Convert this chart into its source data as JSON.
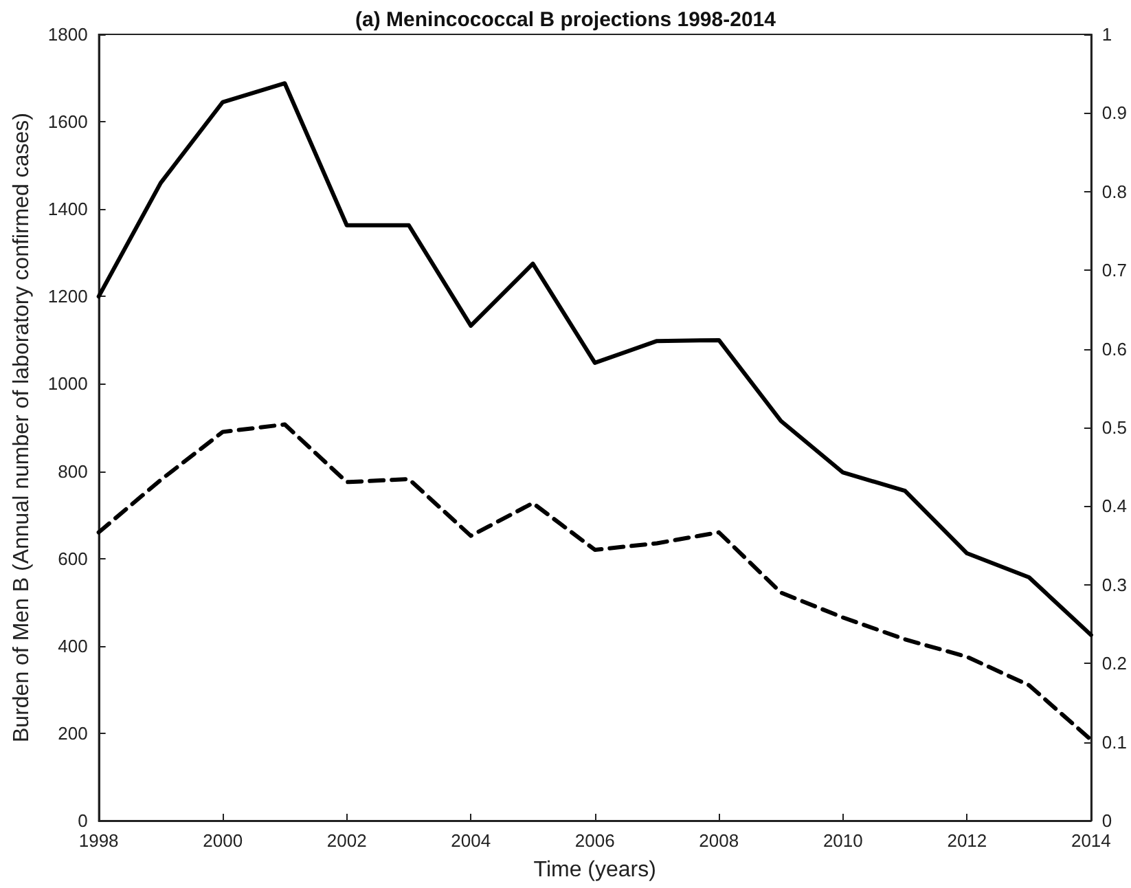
{
  "chart_data": {
    "type": "line",
    "title": "(a) Menincococcal B projections 1998-2014",
    "xlabel": "Time (years)",
    "ylabel": "Burden of Men B (Annual number of laboratory confirmed cases)",
    "x": [
      1998,
      1999,
      2000,
      2001,
      2002,
      2003,
      2004,
      2005,
      2006,
      2007,
      2008,
      2009,
      2010,
      2011,
      2012,
      2013,
      2014
    ],
    "series": [
      {
        "color": "#000000",
        "line_style": "solid",
        "values": [
          1200,
          1460,
          1645,
          1688,
          1363,
          1363,
          1133,
          1275,
          1048,
          1098,
          1100,
          915,
          797,
          755,
          612,
          557,
          425
        ]
      },
      {
        "color": "#000000",
        "line_style": "dashed",
        "values": [
          660,
          780,
          890,
          907,
          775,
          782,
          652,
          727,
          620,
          635,
          660,
          522,
          465,
          415,
          375,
          310,
          185
        ]
      }
    ],
    "xlim": [
      1998,
      2014
    ],
    "xticks": [
      1998,
      2000,
      2002,
      2004,
      2006,
      2008,
      2010,
      2012,
      2014
    ],
    "ylim": [
      0,
      1800
    ],
    "yticks": [
      0,
      200,
      400,
      600,
      800,
      1000,
      1200,
      1400,
      1600,
      1800
    ],
    "y2lim": [
      0,
      1
    ],
    "y2ticks": [
      0,
      0.1,
      0.2,
      0.3,
      0.4,
      0.5,
      0.6,
      0.7,
      0.8,
      0.9,
      1
    ],
    "marker": "none"
  }
}
